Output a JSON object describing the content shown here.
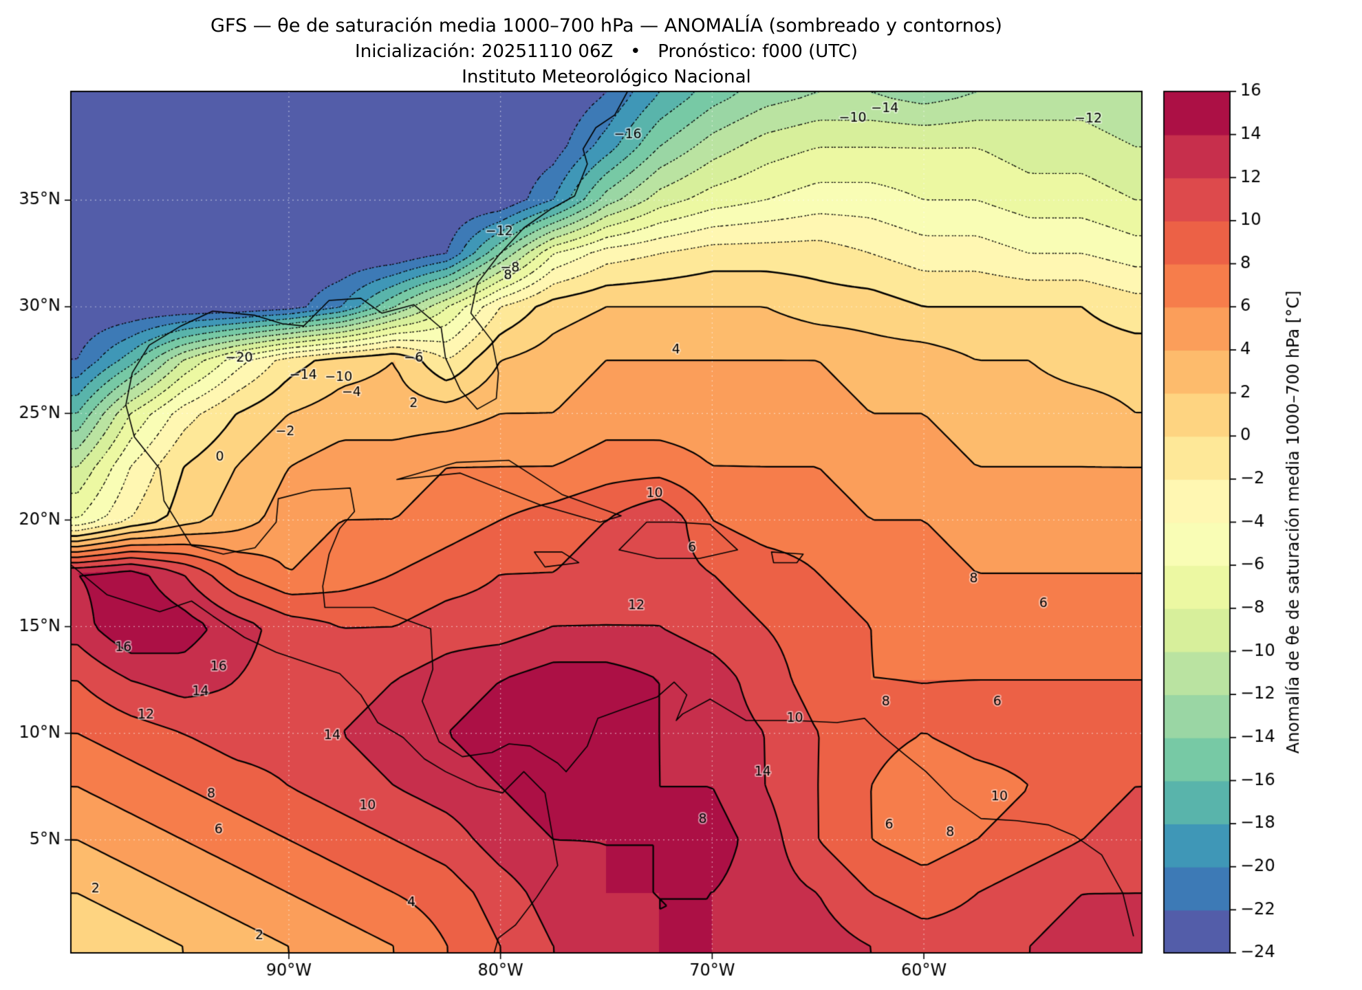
{
  "title": {
    "line1": "GFS — θe de saturación media 1000–700 hPa — ANOMALÍA (sombreado y contornos)",
    "line2": "Inicialización: 20251110 06Z   •   Pronóstico: f000 (UTC)",
    "line3": "Instituto Meteorológico Nacional"
  },
  "axes": {
    "lon_ticks": [
      {
        "value": -90,
        "label": "90°W"
      },
      {
        "value": -80,
        "label": "80°W"
      },
      {
        "value": -70,
        "label": "70°W"
      },
      {
        "value": -60,
        "label": "60°W"
      }
    ],
    "lat_ticks": [
      {
        "value": 35,
        "label": "35°N"
      },
      {
        "value": 30,
        "label": "30°N"
      },
      {
        "value": 25,
        "label": "25°N"
      },
      {
        "value": 20,
        "label": "20°N"
      },
      {
        "value": 15,
        "label": "15°N"
      },
      {
        "value": 10,
        "label": "10°N"
      },
      {
        "value": 5,
        "label": "5°N"
      }
    ]
  },
  "colorbar": {
    "label": "Anomalía de θe de saturación media 1000–700 hPa [°C]",
    "vmin": -24,
    "vmax": 16,
    "ticks": [
      -24,
      -22,
      -20,
      -18,
      -16,
      -14,
      -12,
      -10,
      -8,
      -6,
      -4,
      -2,
      0,
      2,
      4,
      6,
      8,
      10,
      12,
      14,
      16
    ]
  },
  "chart_data": {
    "type": "heatmap",
    "title": "GFS — θe de saturación media 1000–700 hPa — ANOMALÍA (sombreado y contornos)",
    "init": "20251110 06Z",
    "forecast": "f000 (UTC)",
    "variable": "Anomalía de θe de saturación media 1000–700 hPa",
    "units": "°C",
    "lon_min": -100.3,
    "lon_max": -49.7,
    "lat_min": -0.3,
    "lat_max": 40.1,
    "contour_interval": 2,
    "colormap": {
      "vmin": -24,
      "vmax": 16,
      "step": 2,
      "stops": [
        "#5e4fa2",
        "#3288bd",
        "#66c2a5",
        "#abdda4",
        "#e6f598",
        "#ffffbf",
        "#fee08b",
        "#fdae61",
        "#f46d43",
        "#d53e4f",
        "#9e0142"
      ]
    },
    "grid": {
      "lons": [
        -100,
        -97.5,
        -95,
        -92.5,
        -90,
        -87.5,
        -85,
        -82.5,
        -80,
        -77.5,
        -75,
        -72.5,
        -70,
        -67.5,
        -65,
        -62.5,
        -60,
        -57.5,
        -55,
        -52.5,
        -50
      ],
      "lats": [
        40,
        37.5,
        35,
        32.5,
        30,
        27.5,
        25,
        22.5,
        20,
        17.5,
        15,
        12.5,
        10,
        7.5,
        5,
        2.5,
        0
      ],
      "values": [
        [
          -24,
          -24,
          -24,
          -24,
          -24,
          -24,
          -24,
          -24,
          -24,
          -24,
          -22,
          -18,
          -15,
          -13,
          -12,
          -12,
          -13,
          -12,
          -11,
          -11,
          -12
        ],
        [
          -24,
          -24,
          -24,
          -24,
          -24,
          -24,
          -24,
          -24,
          -24,
          -23,
          -19,
          -14,
          -11,
          -9,
          -8,
          -8,
          -8,
          -8,
          -9,
          -9,
          -10
        ],
        [
          -24,
          -24,
          -24,
          -24,
          -24,
          -24,
          -24,
          -24,
          -24,
          -20,
          -13,
          -9,
          -7,
          -6,
          -5,
          -5,
          -6,
          -6,
          -7,
          -7,
          -8
        ],
        [
          -24,
          -24,
          -24,
          -24,
          -24,
          -24,
          -24,
          -22,
          -14,
          -6,
          -3,
          -2,
          -1,
          -1,
          -1,
          -2,
          -3,
          -3,
          -4,
          -4,
          -5
        ],
        [
          -24,
          -24,
          -24,
          -24,
          -23,
          -20,
          -14,
          -8,
          -2,
          1,
          2,
          2,
          2,
          2,
          1,
          1,
          0,
          0,
          0,
          0,
          -1
        ],
        [
          -22,
          -17,
          -10,
          -5,
          -1,
          1,
          2,
          -2,
          2,
          3,
          4,
          4,
          4,
          4,
          4,
          3,
          3,
          2,
          2,
          1,
          1
        ],
        [
          -16,
          -8,
          -3,
          0,
          2,
          3,
          3,
          3,
          4,
          4,
          5,
          5,
          5,
          5,
          5,
          4,
          4,
          3,
          3,
          3,
          2
        ],
        [
          -10,
          -4,
          0,
          2,
          4,
          5,
          5,
          6,
          6,
          6,
          7,
          7,
          6,
          6,
          6,
          5,
          5,
          4,
          4,
          4,
          4
        ],
        [
          -6,
          -2,
          1,
          3,
          5,
          6,
          6,
          7,
          8,
          9,
          10,
          12,
          8,
          7,
          7,
          6,
          6,
          5,
          5,
          5,
          5
        ],
        [
          14,
          15,
          12,
          8,
          6,
          7,
          8,
          9,
          10,
          10,
          11,
          11,
          10,
          9,
          8,
          7,
          7,
          6,
          6,
          6,
          6
        ],
        [
          13,
          16,
          15,
          13,
          11,
          10,
          10,
          11,
          11,
          12,
          12,
          12,
          11,
          10,
          9,
          8,
          7,
          7,
          7,
          7,
          7
        ],
        [
          10,
          12,
          13,
          12,
          11,
          11,
          12,
          13,
          14,
          15,
          15,
          14,
          13,
          11,
          9,
          8,
          8,
          8,
          8,
          8,
          8
        ],
        [
          8,
          9,
          10,
          11,
          11,
          12,
          13,
          14,
          15,
          16,
          15,
          14,
          13,
          12,
          10,
          9,
          8,
          9,
          9,
          9,
          9
        ],
        [
          6,
          7,
          8,
          9,
          10,
          11,
          12,
          13,
          14,
          15,
          15,
          14,
          14,
          12,
          10,
          8,
          6,
          7,
          8,
          9,
          10
        ],
        [
          4,
          5,
          6,
          7,
          8,
          9,
          10,
          11,
          13,
          14,
          14,
          14,
          15,
          13,
          10,
          8,
          7,
          8,
          9,
          10,
          11
        ],
        [
          2,
          3,
          4,
          5,
          6,
          7,
          8,
          9,
          11,
          13,
          14,
          14,
          14,
          13,
          12,
          10,
          9,
          10,
          11,
          12,
          12
        ],
        [
          0,
          1,
          2,
          3,
          4,
          5,
          6,
          8,
          10,
          12,
          13,
          14,
          14,
          14,
          13,
          12,
          11,
          11,
          12,
          13,
          13
        ]
      ]
    },
    "contour_labels": [
      {
        "v": "-16",
        "x": 0.52,
        "y": 0.05
      },
      {
        "v": "-14",
        "x": 0.76,
        "y": 0.02
      },
      {
        "v": "-10",
        "x": 0.73,
        "y": 0.031
      },
      {
        "v": "-12",
        "x": 0.95,
        "y": 0.032
      },
      {
        "v": "-12",
        "x": 0.4,
        "y": 0.163
      },
      {
        "v": "-8",
        "x": 0.41,
        "y": 0.205
      },
      {
        "v": "-20",
        "x": 0.157,
        "y": 0.31
      },
      {
        "v": "-14",
        "x": 0.217,
        "y": 0.33
      },
      {
        "v": "-10",
        "x": 0.25,
        "y": 0.332
      },
      {
        "v": "-6",
        "x": 0.32,
        "y": 0.31
      },
      {
        "v": "-4",
        "x": 0.262,
        "y": 0.35
      },
      {
        "v": "-2",
        "x": 0.2,
        "y": 0.395
      },
      {
        "v": "0",
        "x": 0.139,
        "y": 0.425
      },
      {
        "v": "2",
        "x": 0.32,
        "y": 0.362
      },
      {
        "v": "4",
        "x": 0.565,
        "y": 0.3
      },
      {
        "v": "8",
        "x": 0.408,
        "y": 0.214
      },
      {
        "v": "10",
        "x": 0.545,
        "y": 0.467
      },
      {
        "v": "6",
        "x": 0.58,
        "y": 0.53
      },
      {
        "v": "12",
        "x": 0.528,
        "y": 0.597
      },
      {
        "v": "16",
        "x": 0.049,
        "y": 0.646
      },
      {
        "v": "16",
        "x": 0.138,
        "y": 0.668
      },
      {
        "v": "14",
        "x": 0.121,
        "y": 0.697
      },
      {
        "v": "12",
        "x": 0.07,
        "y": 0.724
      },
      {
        "v": "14",
        "x": 0.244,
        "y": 0.748
      },
      {
        "v": "8",
        "x": 0.131,
        "y": 0.816
      },
      {
        "v": "6",
        "x": 0.138,
        "y": 0.857
      },
      {
        "v": "10",
        "x": 0.277,
        "y": 0.829
      },
      {
        "v": "4",
        "x": 0.318,
        "y": 0.942
      },
      {
        "v": "2",
        "x": 0.023,
        "y": 0.926
      },
      {
        "v": "2",
        "x": 0.176,
        "y": 0.98
      },
      {
        "v": "8",
        "x": 0.761,
        "y": 0.709
      },
      {
        "v": "6",
        "x": 0.865,
        "y": 0.709
      },
      {
        "v": "8",
        "x": 0.843,
        "y": 0.566
      },
      {
        "v": "6",
        "x": 0.908,
        "y": 0.595
      },
      {
        "v": "10",
        "x": 0.867,
        "y": 0.819
      },
      {
        "v": "8",
        "x": 0.821,
        "y": 0.86
      },
      {
        "v": "6",
        "x": 0.764,
        "y": 0.852
      },
      {
        "v": "14",
        "x": 0.646,
        "y": 0.79
      },
      {
        "v": "10",
        "x": 0.676,
        "y": 0.728
      },
      {
        "v": "8",
        "x": 0.59,
        "y": 0.845
      }
    ],
    "coastlines": [
      [
        [
          -74,
          40.1
        ],
        [
          -74.6,
          39
        ],
        [
          -75.5,
          38.4
        ],
        [
          -76.1,
          37.4
        ],
        [
          -75.9,
          36.7
        ],
        [
          -76.5,
          35.2
        ],
        [
          -77.6,
          34.6
        ],
        [
          -78.9,
          33.7
        ],
        [
          -80.1,
          32.4
        ],
        [
          -81.1,
          31.1
        ],
        [
          -81.4,
          29.7
        ],
        [
          -80.4,
          28.4
        ],
        [
          -80.1,
          26.9
        ],
        [
          -80.2,
          25.7
        ],
        [
          -81.1,
          25.2
        ],
        [
          -81.9,
          26.1
        ],
        [
          -82.6,
          27.6
        ],
        [
          -82.8,
          29
        ],
        [
          -84.1,
          30.1
        ],
        [
          -85.6,
          29.7
        ],
        [
          -86.6,
          30.4
        ],
        [
          -88.1,
          30.3
        ],
        [
          -89.3,
          29.1
        ],
        [
          -90.3,
          29.2
        ],
        [
          -91.6,
          29.6
        ],
        [
          -93.6,
          29.8
        ],
        [
          -95.1,
          29.1
        ],
        [
          -96.6,
          28.2
        ],
        [
          -97.4,
          26.9
        ],
        [
          -97.7,
          25.4
        ],
        [
          -97.3,
          23.9
        ],
        [
          -96.1,
          22.4
        ],
        [
          -95.9,
          20.9
        ],
        [
          -94.6,
          18.8
        ],
        [
          -93.1,
          18.4
        ],
        [
          -91.6,
          18.7
        ],
        [
          -90.6,
          19.9
        ],
        [
          -90.5,
          21
        ],
        [
          -88.9,
          21.4
        ],
        [
          -87.1,
          21.5
        ],
        [
          -86.9,
          20.4
        ],
        [
          -87.6,
          19.6
        ],
        [
          -88.1,
          18.4
        ],
        [
          -88.4,
          16.9
        ],
        [
          -88.3,
          15.9
        ],
        [
          -87.3,
          15.9
        ],
        [
          -86,
          15.9
        ],
        [
          -84.4,
          15.3
        ],
        [
          -83.3,
          14.9
        ],
        [
          -83.2,
          13
        ],
        [
          -83.7,
          11.5
        ],
        [
          -82.9,
          9.6
        ],
        [
          -81.8,
          8.9
        ],
        [
          -80.4,
          9.1
        ],
        [
          -79.6,
          9.5
        ],
        [
          -78.6,
          9.4
        ],
        [
          -77.3,
          8.6
        ],
        [
          -76.9,
          8.2
        ]
      ],
      [
        [
          -76.9,
          8.2
        ],
        [
          -75.9,
          9.4
        ],
        [
          -75.4,
          10.7
        ],
        [
          -74.3,
          11.1
        ],
        [
          -72.6,
          11.7
        ],
        [
          -71.8,
          12.4
        ],
        [
          -71.2,
          11.8
        ],
        [
          -71.7,
          10.6
        ],
        [
          -71.4,
          10.9
        ],
        [
          -70.1,
          11.6
        ],
        [
          -68.4,
          10.6
        ],
        [
          -66.1,
          10.6
        ],
        [
          -64.1,
          10.5
        ],
        [
          -62.8,
          10.7
        ],
        [
          -62,
          9.9
        ],
        [
          -60.9,
          9
        ],
        [
          -59.9,
          8.2
        ],
        [
          -58.6,
          6.9
        ],
        [
          -57.3,
          6
        ],
        [
          -55.6,
          5.9
        ],
        [
          -54.1,
          5.7
        ],
        [
          -52.9,
          5.2
        ],
        [
          -51.6,
          4.3
        ],
        [
          -50.6,
          2.5
        ],
        [
          -50.1,
          0.5
        ]
      ],
      [
        [
          -100.3,
          17.9
        ],
        [
          -98.6,
          16.5
        ],
        [
          -96.1,
          15.7
        ],
        [
          -94.6,
          16.2
        ],
        [
          -93.6,
          15.5
        ],
        [
          -92.1,
          14.5
        ],
        [
          -90.6,
          13.8
        ],
        [
          -89.1,
          13.3
        ],
        [
          -87.6,
          12.8
        ],
        [
          -86.6,
          11.8
        ],
        [
          -85.8,
          10.5
        ],
        [
          -84.6,
          9.8
        ],
        [
          -83.6,
          8.8
        ],
        [
          -82.6,
          8.2
        ],
        [
          -81.1,
          7.5
        ],
        [
          -79.9,
          7.2
        ],
        [
          -78.9,
          8.2
        ],
        [
          -77.9,
          7.2
        ],
        [
          -77.6,
          5.5
        ],
        [
          -77.3,
          3.8
        ],
        [
          -78.3,
          2.3
        ],
        [
          -79.3,
          1
        ],
        [
          -80.1,
          0.4
        ],
        [
          -80.3,
          -0.3
        ]
      ],
      [
        [
          -84.9,
          21.9
        ],
        [
          -82.1,
          22.7
        ],
        [
          -79.6,
          22.8
        ],
        [
          -77.1,
          21.2
        ],
        [
          -74.3,
          20.2
        ],
        [
          -75.3,
          19.9
        ],
        [
          -78.1,
          20.7
        ],
        [
          -81.9,
          22.2
        ],
        [
          -84.9,
          21.9
        ]
      ],
      [
        [
          -74.4,
          18.6
        ],
        [
          -73.1,
          19.9
        ],
        [
          -71.8,
          19.9
        ],
        [
          -70.1,
          19.8
        ],
        [
          -68.8,
          18.6
        ],
        [
          -70.6,
          18.2
        ],
        [
          -72.6,
          18.2
        ],
        [
          -74.4,
          18.6
        ]
      ],
      [
        [
          -78.4,
          18.5
        ],
        [
          -77.1,
          18.5
        ],
        [
          -76.3,
          18
        ],
        [
          -77.9,
          17.8
        ],
        [
          -78.4,
          18.5
        ]
      ],
      [
        [
          -67.2,
          18.5
        ],
        [
          -65.7,
          18.4
        ],
        [
          -66,
          18
        ],
        [
          -67.1,
          18
        ],
        [
          -67.2,
          18.5
        ]
      ]
    ]
  }
}
